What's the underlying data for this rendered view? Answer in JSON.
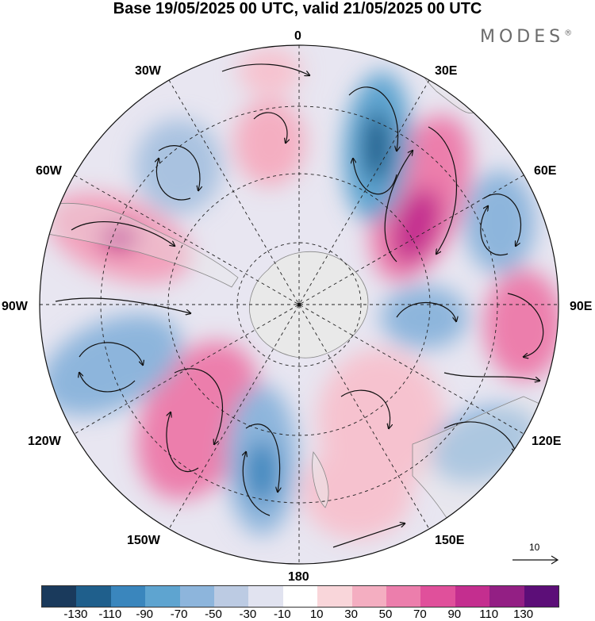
{
  "title": "Base 19/05/2025 00 UTC, valid 21/05/2025 00 UTC",
  "brand": "MODES",
  "brand_mark": "®",
  "longitude_labels": {
    "top": "0",
    "bottom": "180",
    "left": "90W",
    "right": "90E",
    "nw30": "30W",
    "ne30": "30E",
    "w60": "60W",
    "e60": "60E",
    "w120": "120W",
    "e120": "120E",
    "w150": "150W",
    "e150": "150E"
  },
  "vector_reference": {
    "label": "10",
    "icon": "arrow-right-icon"
  },
  "colorbar": {
    "colors": [
      "#1a3a5c",
      "#1f5f8c",
      "#3a86bd",
      "#5ea4d0",
      "#8db5dc",
      "#bccbe3",
      "#e1e3f0",
      "#ffffff",
      "#f9d6da",
      "#f4aec1",
      "#ec7eac",
      "#e0509b",
      "#c42e8f",
      "#931f84",
      "#5c0e78"
    ],
    "tick_labels": [
      "-130",
      "-110",
      "-90",
      "-70",
      "-50",
      "-30",
      "-10",
      "10",
      "30",
      "50",
      "70",
      "90",
      "110",
      "130"
    ]
  },
  "map": {
    "projection": "south-polar-stereographic",
    "land_color": "#e9e9e9",
    "anomaly_centers": [
      {
        "lon": 20,
        "value": -110
      },
      {
        "lon": 40,
        "value": 90
      },
      {
        "lon": 60,
        "value": -70
      },
      {
        "lon": 90,
        "value": 70
      },
      {
        "lon": 85,
        "value": -70
      },
      {
        "lon": 120,
        "value": -50
      },
      {
        "lon": 140,
        "value": 30
      },
      {
        "lon": 175,
        "value": -90
      },
      {
        "lon": 145,
        "value": 70
      },
      {
        "lon": 115,
        "value": -70
      },
      {
        "lon": 65,
        "value": 70
      },
      {
        "lon": 40,
        "value": -50
      },
      {
        "lon": 5,
        "value": 30
      }
    ]
  }
}
